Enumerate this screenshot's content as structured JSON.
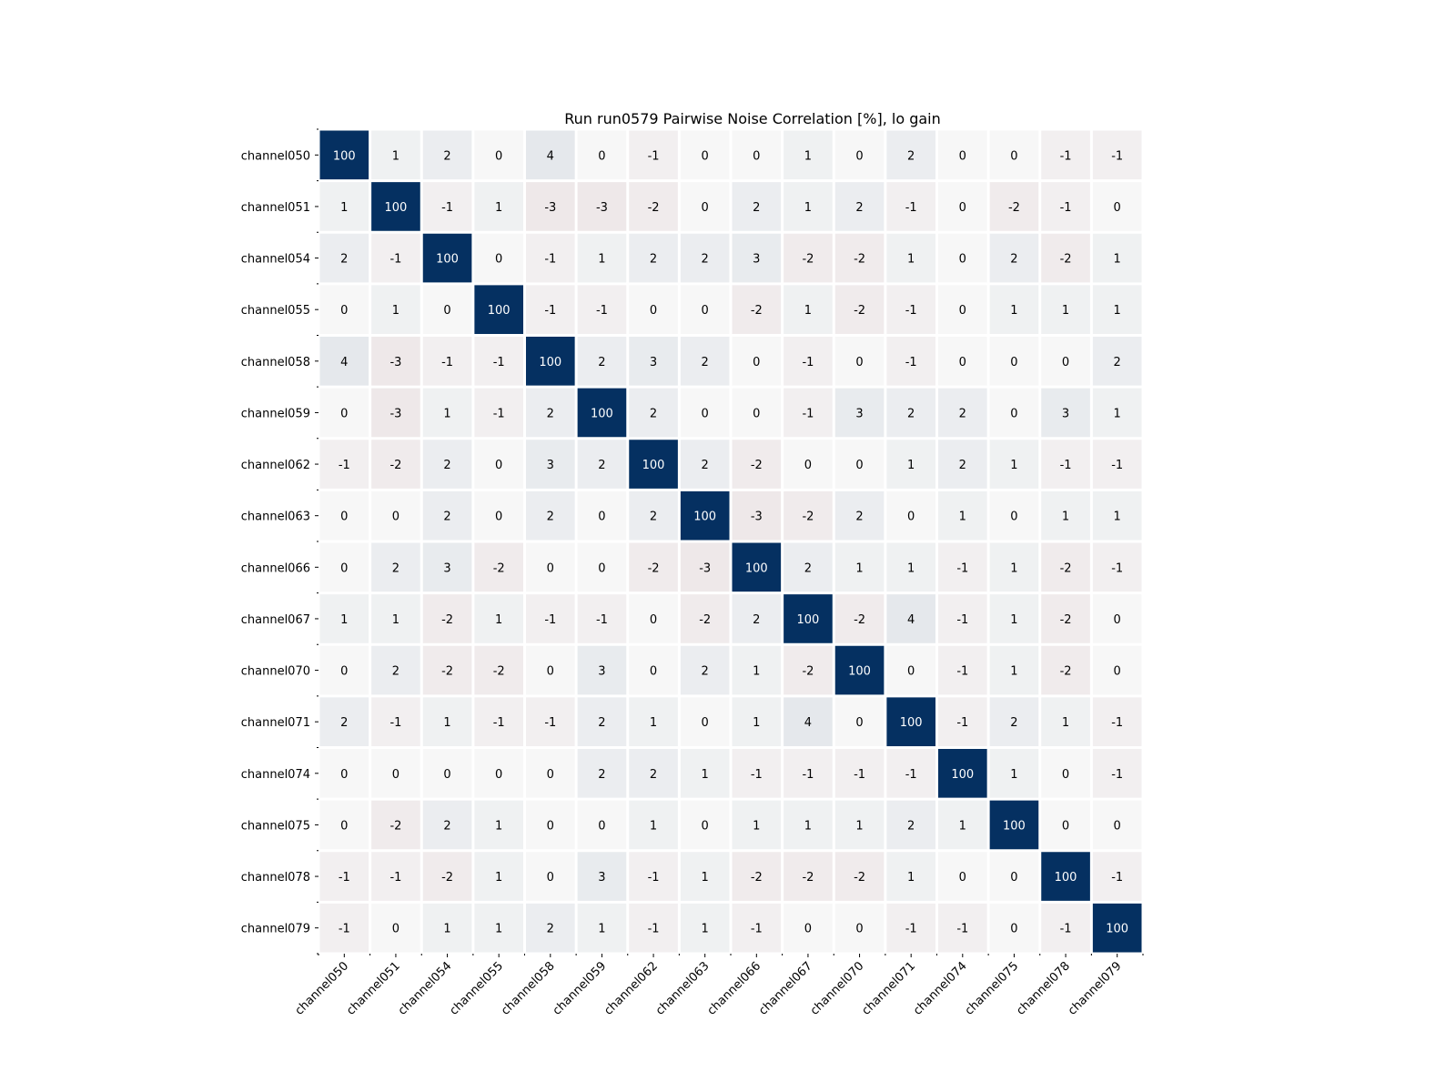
{
  "chart_data": {
    "type": "heatmap",
    "title": "Run run0579 Pairwise Noise Correlation [%], lo gain",
    "xlabel": "",
    "ylabel": "",
    "categories": [
      "channel050",
      "channel051",
      "channel054",
      "channel055",
      "channel058",
      "channel059",
      "channel062",
      "channel063",
      "channel066",
      "channel067",
      "channel070",
      "channel071",
      "channel074",
      "channel075",
      "channel078",
      "channel079"
    ],
    "values": [
      [
        100,
        1,
        2,
        0,
        4,
        0,
        -1,
        0,
        0,
        1,
        0,
        2,
        0,
        0,
        -1,
        -1
      ],
      [
        1,
        100,
        -1,
        1,
        -3,
        -3,
        -2,
        0,
        2,
        1,
        2,
        -1,
        0,
        -2,
        -1,
        0
      ],
      [
        2,
        -1,
        100,
        0,
        -1,
        1,
        2,
        2,
        3,
        -2,
        -2,
        1,
        0,
        2,
        -2,
        1
      ],
      [
        0,
        1,
        0,
        100,
        -1,
        -1,
        0,
        0,
        -2,
        1,
        -2,
        -1,
        0,
        1,
        1,
        1
      ],
      [
        4,
        -3,
        -1,
        -1,
        100,
        2,
        3,
        2,
        0,
        -1,
        0,
        -1,
        0,
        0,
        0,
        2
      ],
      [
        0,
        -3,
        1,
        -1,
        2,
        100,
        2,
        0,
        0,
        -1,
        3,
        2,
        2,
        0,
        3,
        1
      ],
      [
        -1,
        -2,
        2,
        0,
        3,
        2,
        100,
        2,
        -2,
        0,
        0,
        1,
        2,
        1,
        -1,
        -1
      ],
      [
        0,
        0,
        2,
        0,
        2,
        0,
        2,
        100,
        -3,
        -2,
        2,
        0,
        1,
        0,
        1,
        1
      ],
      [
        0,
        2,
        3,
        -2,
        0,
        0,
        -2,
        -3,
        100,
        2,
        1,
        1,
        -1,
        1,
        -2,
        -1
      ],
      [
        1,
        1,
        -2,
        1,
        -1,
        -1,
        0,
        -2,
        2,
        100,
        -2,
        4,
        -1,
        1,
        -2,
        0
      ],
      [
        0,
        2,
        -2,
        -2,
        0,
        3,
        0,
        2,
        1,
        -2,
        100,
        0,
        -1,
        1,
        -2,
        0
      ],
      [
        2,
        -1,
        1,
        -1,
        -1,
        2,
        1,
        0,
        1,
        4,
        0,
        100,
        -1,
        2,
        1,
        -1
      ],
      [
        0,
        0,
        0,
        0,
        0,
        2,
        2,
        1,
        -1,
        -1,
        -1,
        -1,
        100,
        1,
        0,
        -1
      ],
      [
        0,
        -2,
        2,
        1,
        0,
        0,
        1,
        0,
        1,
        1,
        1,
        2,
        1,
        100,
        0,
        0
      ],
      [
        -1,
        -1,
        -2,
        1,
        0,
        3,
        -1,
        1,
        -2,
        -2,
        -2,
        1,
        0,
        0,
        100,
        -1
      ],
      [
        -1,
        0,
        1,
        1,
        2,
        1,
        -1,
        1,
        -1,
        0,
        0,
        -1,
        -1,
        0,
        -1,
        100
      ]
    ],
    "colors": {
      "positive_max": "#053061",
      "neutral": "#f7f7f7",
      "negative_max": "#67001f",
      "text_dark": "#000000",
      "text_light": "#ffffff"
    },
    "grid": false,
    "legend": "none"
  }
}
